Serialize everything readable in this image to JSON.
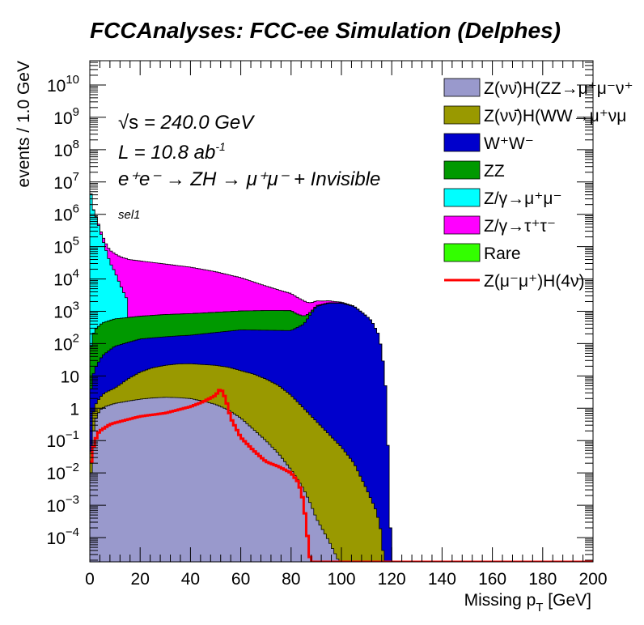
{
  "chart_data": {
    "type": "area",
    "stacked": true,
    "histogram": true,
    "title": "FCCAnalyses: FCC-ee Simulation (Delphes)",
    "xlabel": "Missing p",
    "xlabel_sub": "T",
    "xlabel_unit": " [GeV]",
    "ylabel": "events / 1.0 GeV",
    "xlim": [
      0,
      200
    ],
    "ylim_log10": [
      -4.75,
      10.75
    ],
    "yscale": "log",
    "grid": false,
    "legend_position": "top-right",
    "x_ticks": [
      "0",
      "20",
      "40",
      "60",
      "80",
      "100",
      "120",
      "140",
      "160",
      "180",
      "200"
    ],
    "y_ticks": [
      {
        "base": "10",
        "exp": "10"
      },
      {
        "base": "10",
        "exp": "9"
      },
      {
        "base": "10",
        "exp": "8"
      },
      {
        "base": "10",
        "exp": "7"
      },
      {
        "base": "10",
        "exp": "6"
      },
      {
        "base": "10",
        "exp": "5"
      },
      {
        "base": "10",
        "exp": "4"
      },
      {
        "base": "10",
        "exp": "3"
      },
      {
        "base": "10",
        "exp": "2"
      },
      {
        "base": "10",
        "exp": ""
      },
      {
        "base": "1",
        "exp": ""
      },
      {
        "base": "10",
        "exp": "−1"
      },
      {
        "base": "10",
        "exp": "−2"
      },
      {
        "base": "10",
        "exp": "−3"
      },
      {
        "base": "10",
        "exp": "−4"
      }
    ],
    "annotations": {
      "sqrt_s_prefix": "√s",
      "sqrt_s": " = 240.0 GeV",
      "lumi": "L = 10.8 ab",
      "lumi_exp": "-1",
      "process": "e⁺e⁻ → ZH → μ⁺μ⁻ + Invisible",
      "selection": "sel1"
    },
    "stack_order": [
      "ZnunuHZZ",
      "ZnunuHWW",
      "WW",
      "ZZ",
      "Zmumu",
      "Ztautau"
    ],
    "series": [
      {
        "key": "ZnunuHZZ",
        "name": "Z(νν̄)H(ZZ→μ⁺μ⁻ν⁺",
        "color": "#9999cc",
        "legend_type": "box",
        "x": [
          0,
          1,
          2,
          4,
          6,
          10,
          15,
          20,
          25,
          30,
          35,
          40,
          45,
          50,
          55,
          60,
          65,
          70,
          75,
          80,
          85,
          88,
          90,
          95,
          100
        ],
        "values_log10": [
          -3.0,
          -1.0,
          -0.4,
          -0.05,
          0.05,
          0.15,
          0.22,
          0.28,
          0.32,
          0.34,
          0.33,
          0.3,
          0.22,
          0.12,
          -0.05,
          -0.3,
          -0.65,
          -1.0,
          -1.4,
          -1.9,
          -2.5,
          -3.0,
          -3.4,
          -4.1,
          -4.9
        ]
      },
      {
        "key": "ZnunuHWW",
        "name": "Z(νν̄)H(WW→μ⁺νμ",
        "color": "#999900",
        "legend_type": "box",
        "x": [
          0,
          1,
          2,
          4,
          6,
          10,
          15,
          20,
          25,
          30,
          35,
          40,
          45,
          50,
          55,
          60,
          65,
          70,
          75,
          80,
          85,
          90,
          95,
          100,
          105,
          110,
          114,
          116,
          117
        ],
        "values_log10": [
          -2.5,
          -0.4,
          -0.1,
          0.1,
          0.28,
          0.45,
          0.8,
          1.05,
          1.2,
          1.28,
          1.33,
          1.34,
          1.32,
          1.3,
          1.25,
          1.15,
          1.05,
          0.9,
          0.7,
          0.4,
          0.0,
          -0.4,
          -0.8,
          -1.2,
          -1.7,
          -2.5,
          -3.2,
          -3.9,
          -4.9
        ]
      },
      {
        "key": "WW",
        "name": "W⁺W⁻",
        "color": "#0000cc",
        "legend_type": "box",
        "x": [
          0,
          1,
          2,
          5,
          10,
          20,
          30,
          40,
          50,
          60,
          70,
          80,
          85,
          90,
          95,
          100,
          105,
          110,
          112,
          115,
          117,
          118,
          119,
          120
        ],
        "values_log10": [
          0.3,
          0.9,
          1.2,
          1.6,
          1.9,
          2.1,
          2.15,
          2.2,
          2.3,
          2.4,
          2.4,
          2.4,
          2.6,
          3.15,
          3.25,
          3.25,
          3.15,
          2.85,
          2.7,
          2.25,
          1.2,
          0.2,
          -2.5,
          -4.9
        ]
      },
      {
        "key": "ZZ",
        "name": "ZZ",
        "color": "#009900",
        "legend_type": "box",
        "x": [
          0,
          1,
          2,
          5,
          10,
          20,
          30,
          40,
          50,
          60,
          70,
          80,
          85,
          90,
          95,
          100,
          105,
          110,
          112,
          114,
          115,
          117
        ],
        "values_log10": [
          1.6,
          2.2,
          2.4,
          2.6,
          2.7,
          2.75,
          2.8,
          2.82,
          2.85,
          2.88,
          2.9,
          2.9,
          2.5,
          1.9,
          1.8,
          1.5,
          1.0,
          0.3,
          -0.5,
          -1.5,
          -3.0,
          -4.9
        ]
      },
      {
        "key": "Zmumu",
        "name": "Z/γ→μ⁺μ⁻",
        "color": "#00ffff",
        "legend_type": "box",
        "x": [
          0,
          1,
          2,
          3,
          4,
          5,
          6,
          7,
          8,
          10,
          12,
          15
        ],
        "values_log10": [
          7.0,
          6.25,
          6.0,
          5.8,
          5.5,
          5.25,
          5.0,
          4.75,
          4.5,
          4.2,
          3.8,
          3.2
        ]
      },
      {
        "key": "Ztautau",
        "name": "Z/γ→τ⁺τ⁻",
        "color": "#ff00ff",
        "legend_type": "box",
        "x": [
          0,
          1,
          2,
          5,
          10,
          15,
          20,
          30,
          40,
          50,
          60,
          70,
          80,
          85,
          90,
          95,
          100,
          105,
          110,
          113,
          115,
          116,
          117
        ],
        "values_log10": [
          4.6,
          4.7,
          4.7,
          4.68,
          4.65,
          4.6,
          4.55,
          4.45,
          4.35,
          4.2,
          4.0,
          3.7,
          3.4,
          3.15,
          2.8,
          2.45,
          2.05,
          1.5,
          0.75,
          0.0,
          -1.0,
          -2.5,
          -4.9
        ]
      },
      {
        "key": "Rare",
        "name": "Rare",
        "color": "#33ff00",
        "legend_type": "box",
        "x": [],
        "values_log10": []
      },
      {
        "key": "Signal",
        "name": "Z(μ⁻μ⁺)H(4ν)",
        "color": "#ff0000",
        "legend_type": "line",
        "x": [
          0,
          1,
          2,
          3,
          4,
          6,
          8,
          10,
          15,
          20,
          25,
          30,
          35,
          40,
          45,
          50,
          52,
          54,
          56,
          60,
          65,
          70,
          75,
          80,
          83,
          85,
          86,
          87,
          88,
          89,
          200
        ],
        "values_log10": [
          -2.0,
          -1.3,
          -1.05,
          -0.8,
          -0.7,
          -0.6,
          -0.5,
          -0.45,
          -0.35,
          -0.25,
          -0.2,
          -0.15,
          -0.05,
          0.05,
          0.2,
          0.4,
          0.62,
          0.3,
          -0.3,
          -0.9,
          -1.3,
          -1.65,
          -1.8,
          -2.0,
          -2.3,
          -2.9,
          -3.6,
          -4.3,
          -4.9,
          -4.9,
          -4.9
        ]
      }
    ]
  }
}
